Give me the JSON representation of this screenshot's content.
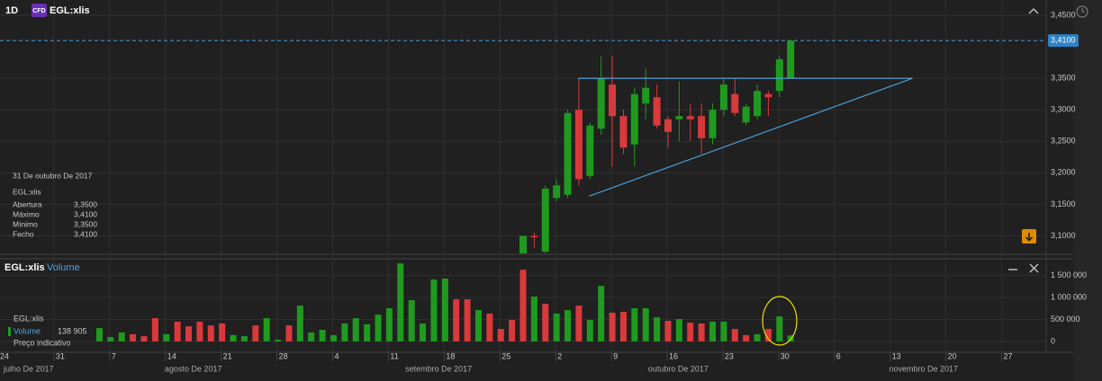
{
  "header": {
    "interval": "1D",
    "badge": "CFD",
    "symbol": "EGL:xlis"
  },
  "chart_data": [
    {
      "type": "candlestick",
      "x": [
        "2017-09-27",
        "2017-09-28",
        "2017-09-29",
        "2017-10-02",
        "2017-10-03",
        "2017-10-04",
        "2017-10-05",
        "2017-10-06",
        "2017-10-09",
        "2017-10-10",
        "2017-10-11",
        "2017-10-12",
        "2017-10-13",
        "2017-10-16",
        "2017-10-17",
        "2017-10-18",
        "2017-10-19",
        "2017-10-20",
        "2017-10-23",
        "2017-10-24",
        "2017-10-25",
        "2017-10-26",
        "2017-10-27",
        "2017-10-30",
        "2017-10-31"
      ],
      "open": [
        3.06,
        3.1,
        3.075,
        3.16,
        3.165,
        3.3,
        3.195,
        3.27,
        3.34,
        3.29,
        3.245,
        3.31,
        3.32,
        3.285,
        3.285,
        3.29,
        3.29,
        3.255,
        3.3,
        3.325,
        3.28,
        3.29,
        3.325,
        3.33,
        3.35
      ],
      "high": [
        3.1,
        3.105,
        3.18,
        3.19,
        3.3,
        3.35,
        3.28,
        3.385,
        3.385,
        3.3,
        3.335,
        3.365,
        3.34,
        3.29,
        3.345,
        3.31,
        3.31,
        3.31,
        3.35,
        3.35,
        3.31,
        3.34,
        3.33,
        3.385,
        3.41
      ],
      "low": [
        3.05,
        3.08,
        3.06,
        3.155,
        3.16,
        3.18,
        3.19,
        3.26,
        3.21,
        3.23,
        3.21,
        3.285,
        3.27,
        3.24,
        3.25,
        3.25,
        3.23,
        3.245,
        3.29,
        3.29,
        3.275,
        3.285,
        3.29,
        3.32,
        3.35
      ],
      "close": [
        3.1,
        3.098,
        3.175,
        3.18,
        3.295,
        3.19,
        3.275,
        3.35,
        3.29,
        3.24,
        3.325,
        3.335,
        3.275,
        3.265,
        3.29,
        3.285,
        3.255,
        3.3,
        3.34,
        3.295,
        3.305,
        3.33,
        3.32,
        3.38,
        3.41
      ],
      "colors": {
        "up": "#1f9a1f",
        "down": "#d9393b"
      },
      "xlim": [
        "2017-07-24",
        "2017-12-01"
      ],
      "ylim": [
        3.075,
        3.46
      ],
      "yticks": [
        {
          "value": 3.45,
          "label": "3,4500"
        },
        {
          "value": 3.35,
          "label": "3,3500"
        },
        {
          "value": 3.3,
          "label": "3,3000"
        },
        {
          "value": 3.25,
          "label": "3,2500"
        },
        {
          "value": 3.2,
          "label": "3,2000"
        },
        {
          "value": 3.15,
          "label": "3,1500"
        },
        {
          "value": 3.1,
          "label": "3,1000"
        }
      ],
      "grid": true,
      "last_price": {
        "value": 3.41,
        "label": "3,4100"
      },
      "lines": [
        {
          "x": [
            "2017-10-04",
            "2017-11-15"
          ],
          "y": [
            3.35,
            3.35
          ],
          "color": "#4b9fd9"
        },
        {
          "x": [
            "2017-10-05",
            "2017-11-15"
          ],
          "y": [
            3.163,
            3.35
          ],
          "color": "#4b9fd9"
        }
      ],
      "info": {
        "date": "31 De outubro De 2017",
        "symbol": "EGL:xlis",
        "rows": [
          {
            "label": "Abertura",
            "value": "3,3500"
          },
          {
            "label": "Máximo",
            "value": "3,4100"
          },
          {
            "label": "Mínimo",
            "value": "3,3500"
          },
          {
            "label": "Fecho",
            "value": "3,4100"
          }
        ]
      }
    },
    {
      "type": "bar",
      "title": "EGL:xlis",
      "series_name": "Volume",
      "x": [
        "2017-08-04",
        "2017-08-07",
        "2017-08-08",
        "2017-08-09",
        "2017-08-10",
        "2017-08-11",
        "2017-08-14",
        "2017-08-15",
        "2017-08-16",
        "2017-08-17",
        "2017-08-18",
        "2017-08-21",
        "2017-08-22",
        "2017-08-23",
        "2017-08-24",
        "2017-08-25",
        "2017-08-28",
        "2017-08-29",
        "2017-08-30",
        "2017-08-31",
        "2017-09-01",
        "2017-09-04",
        "2017-09-05",
        "2017-09-06",
        "2017-09-07",
        "2017-09-08",
        "2017-09-11",
        "2017-09-12",
        "2017-09-13",
        "2017-09-14",
        "2017-09-15",
        "2017-09-18",
        "2017-09-19",
        "2017-09-20",
        "2017-09-21",
        "2017-09-22",
        "2017-09-25",
        "2017-09-26",
        "2017-09-27",
        "2017-09-28",
        "2017-09-29",
        "2017-10-02",
        "2017-10-03",
        "2017-10-04",
        "2017-10-05",
        "2017-10-06",
        "2017-10-09",
        "2017-10-10",
        "2017-10-11",
        "2017-10-12",
        "2017-10-13",
        "2017-10-16",
        "2017-10-17",
        "2017-10-18",
        "2017-10-19",
        "2017-10-20",
        "2017-10-23",
        "2017-10-24",
        "2017-10-25",
        "2017-10-26",
        "2017-10-27",
        "2017-10-30",
        "2017-10-31"
      ],
      "values": [
        305000,
        100000,
        205000,
        165000,
        120000,
        530000,
        165000,
        450000,
        345000,
        450000,
        365000,
        410000,
        145000,
        120000,
        365000,
        530000,
        40000,
        365000,
        815000,
        205000,
        265000,
        145000,
        410000,
        530000,
        390000,
        610000,
        755000,
        1775000,
        940000,
        410000,
        1410000,
        1430000,
        960000,
        960000,
        715000,
        635000,
        285000,
        490000,
        1630000,
        1020000,
        855000,
        635000,
        715000,
        815000,
        490000,
        1265000,
        655000,
        675000,
        755000,
        755000,
        550000,
        470000,
        510000,
        430000,
        410000,
        450000,
        450000,
        285000,
        145000,
        165000,
        285000,
        570000,
        138905
      ],
      "directions": [
        "up",
        "up",
        "up",
        "down",
        "down",
        "down",
        "up",
        "down",
        "down",
        "down",
        "down",
        "down",
        "up",
        "up",
        "down",
        "up",
        "up",
        "down",
        "up",
        "up",
        "up",
        "up",
        "up",
        "up",
        "up",
        "up",
        "up",
        "up",
        "up",
        "up",
        "up",
        "up",
        "down",
        "down",
        "up",
        "down",
        "down",
        "down",
        "down",
        "up",
        "down",
        "up",
        "up",
        "down",
        "up",
        "up",
        "down",
        "down",
        "up",
        "up",
        "up",
        "down",
        "up",
        "down",
        "down",
        "up",
        "up",
        "down",
        "down",
        "up",
        "down",
        "up",
        "up"
      ],
      "colors": {
        "up": "#1f9a1f",
        "down": "#d9393b"
      },
      "ylim": [
        -245000,
        1840000
      ],
      "yticks": [
        {
          "value": 1500000,
          "label": "1 500 000"
        },
        {
          "value": 1000000,
          "label": "1 000 000"
        },
        {
          "value": 500000,
          "label": "500 000"
        },
        0
      ],
      "legend": {
        "symbol": "EGL:xlis",
        "series": "Volume",
        "last_value_label": "138 905",
        "note": "Preço indicativo"
      },
      "xticks": [
        {
          "value": "2017-07-24",
          "label": "24"
        },
        {
          "value": "2017-07-31",
          "label": "31"
        },
        {
          "value": "2017-08-07",
          "label": "7"
        },
        {
          "value": "2017-08-14",
          "label": "14"
        },
        {
          "value": "2017-08-21",
          "label": "21"
        },
        {
          "value": "2017-08-28",
          "label": "28"
        },
        {
          "value": "2017-09-04",
          "label": "4"
        },
        {
          "value": "2017-09-11",
          "label": "11"
        },
        {
          "value": "2017-09-18",
          "label": "18"
        },
        {
          "value": "2017-09-25",
          "label": "25"
        },
        {
          "value": "2017-10-02",
          "label": "2"
        },
        {
          "value": "2017-10-09",
          "label": "9"
        },
        {
          "value": "2017-10-16",
          "label": "16"
        },
        {
          "value": "2017-10-23",
          "label": "23"
        },
        {
          "value": "2017-10-30",
          "label": "30"
        },
        {
          "value": "2017-11-06",
          "label": "6"
        },
        {
          "value": "2017-11-13",
          "label": "13"
        },
        {
          "value": "2017-11-20",
          "label": "20"
        },
        {
          "value": "2017-11-27",
          "label": "27"
        }
      ],
      "month_labels": [
        {
          "value": "2017-07",
          "label": "julho De 2017"
        },
        {
          "value": "2017-08",
          "label": "agosto De 2017"
        },
        {
          "value": "2017-09",
          "label": "setembro De 2017"
        },
        {
          "value": "2017-10",
          "label": "outubro De 2017"
        },
        {
          "value": "2017-11",
          "label": "novembro De 2017"
        }
      ]
    }
  ]
}
